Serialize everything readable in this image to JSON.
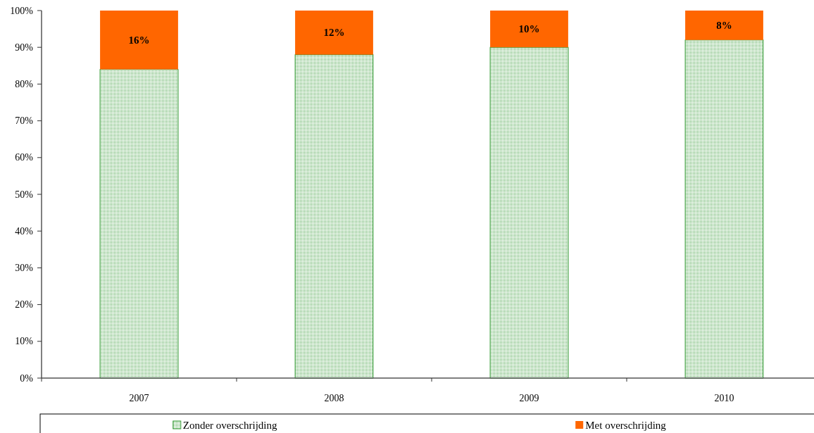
{
  "chart_data": {
    "type": "bar",
    "categories": [
      "2007",
      "2008",
      "2009",
      "2010"
    ],
    "stacked": true,
    "series": [
      {
        "name": "Zonder overschrijding",
        "color": "#339933",
        "values": [
          84,
          88,
          90,
          92
        ]
      },
      {
        "name": "Met overschrijding",
        "color": "#ff6600",
        "values": [
          16,
          12,
          10,
          8
        ],
        "value_labels": [
          "16%",
          "12%",
          "10%",
          "8%"
        ]
      }
    ],
    "ylim": [
      0,
      100
    ],
    "yticks": [
      {
        "value": 0,
        "label": "0%"
      },
      {
        "value": 10,
        "label": "10%"
      },
      {
        "value": 20,
        "label": "20%"
      },
      {
        "value": 30,
        "label": "30%"
      },
      {
        "value": 40,
        "label": "40%"
      },
      {
        "value": 50,
        "label": "50%"
      },
      {
        "value": 60,
        "label": "60%"
      },
      {
        "value": 70,
        "label": "70%"
      },
      {
        "value": 80,
        "label": "80%"
      },
      {
        "value": 90,
        "label": "90%"
      },
      {
        "value": 100,
        "label": "100%"
      }
    ],
    "legend": "bottom"
  }
}
